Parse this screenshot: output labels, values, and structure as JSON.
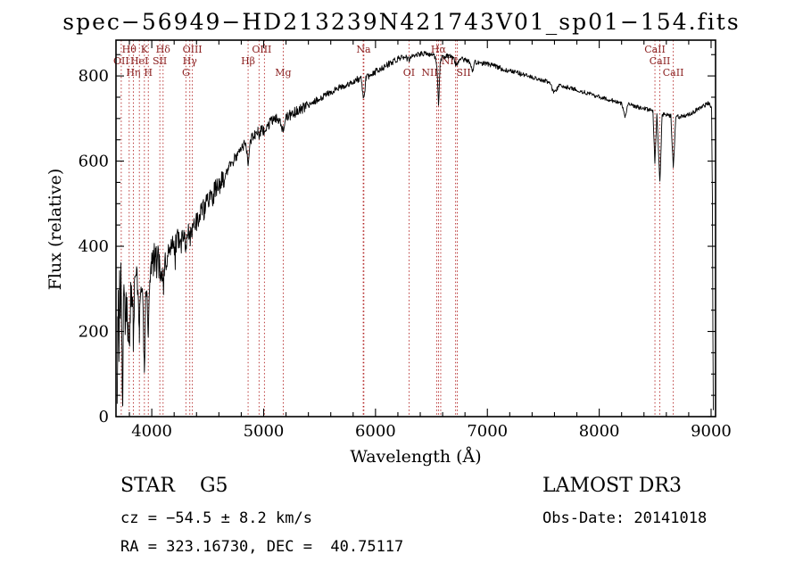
{
  "title": "spec−56949−HD213239N421743V01_sp01−154.fits",
  "chart_data": {
    "type": "line",
    "title": "spec−56949−HD213239N421743V01_sp01−154.fits",
    "xlabel": "Wavelength (Å)",
    "ylabel": "Flux (relative)",
    "xlim": [
      3680,
      9040
    ],
    "ylim": [
      0,
      884
    ],
    "x_ticks": [
      4000,
      5000,
      6000,
      7000,
      8000,
      9000
    ],
    "y_ticks": [
      0,
      200,
      400,
      600,
      800
    ],
    "x_minor_step": 200,
    "y_minor_step": 50,
    "grid": false,
    "legend": "none",
    "spectrum_color": "#000000",
    "marker_color": "#b22222",
    "label_color": "#8b2020",
    "marker_wavelengths": [
      3727,
      3798,
      3835,
      3889,
      3934,
      3969,
      4072,
      4101,
      4305,
      4340,
      4363,
      4861,
      4959,
      5007,
      5175,
      5890,
      5896,
      6300,
      6548,
      6563,
      6583,
      6716,
      6731,
      8498,
      8542,
      8662
    ],
    "spectral_lines": [
      {
        "label": "Hθ",
        "wavelength": 3798,
        "row": 1
      },
      {
        "label": "K",
        "wavelength": 3934,
        "row": 1
      },
      {
        "label": "Hδ",
        "wavelength": 4101,
        "row": 1
      },
      {
        "label": "OIII",
        "wavelength": 4363,
        "row": 1
      },
      {
        "label": "OIII",
        "wavelength": 4983,
        "row": 1
      },
      {
        "label": "Na",
        "wavelength": 5893,
        "row": 1
      },
      {
        "label": "Hα",
        "wavelength": 6563,
        "row": 1
      },
      {
        "label": "CaII",
        "wavelength": 8498,
        "row": 1
      },
      {
        "label": "OII",
        "wavelength": 3727,
        "row": 2
      },
      {
        "label": "HeI",
        "wavelength": 3889,
        "row": 2
      },
      {
        "label": "SII",
        "wavelength": 4072,
        "row": 2
      },
      {
        "label": "Hγ",
        "wavelength": 4340,
        "row": 2
      },
      {
        "label": "Hβ",
        "wavelength": 4861,
        "row": 2
      },
      {
        "label": "NII",
        "wavelength": 6583,
        "row": 2,
        "dx": 10
      },
      {
        "label": "CaII",
        "wavelength": 8542,
        "row": 2
      },
      {
        "label": "Hη",
        "wavelength": 3835,
        "row": 3
      },
      {
        "label": "H",
        "wavelength": 3969,
        "row": 3
      },
      {
        "label": "G",
        "wavelength": 4305,
        "row": 3
      },
      {
        "label": "Mg",
        "wavelength": 5175,
        "row": 3
      },
      {
        "label": "OI",
        "wavelength": 6300,
        "row": 3
      },
      {
        "label": "NII",
        "wavelength": 6548,
        "row": 3,
        "dx": -8
      },
      {
        "label": "SII",
        "wavelength": 6724,
        "row": 3,
        "dx": 8
      },
      {
        "label": "CaII",
        "wavelength": 8662,
        "row": 3
      }
    ],
    "series": [
      {
        "name": "spectrum",
        "points": [
          [
            3690,
            10
          ],
          [
            3695,
            200
          ],
          [
            3700,
            280
          ],
          [
            3706,
            150
          ],
          [
            3712,
            310
          ],
          [
            3718,
            230
          ],
          [
            3724,
            330
          ],
          [
            3730,
            180
          ],
          [
            3736,
            90
          ],
          [
            3741,
            40
          ],
          [
            3747,
            250
          ],
          [
            3754,
            320
          ],
          [
            3762,
            200
          ],
          [
            3770,
            300
          ],
          [
            3778,
            260
          ],
          [
            3786,
            210
          ],
          [
            3798,
            150
          ],
          [
            3808,
            260
          ],
          [
            3818,
            310
          ],
          [
            3828,
            270
          ],
          [
            3835,
            190
          ],
          [
            3844,
            280
          ],
          [
            3854,
            330
          ],
          [
            3864,
            350
          ],
          [
            3876,
            300
          ],
          [
            3889,
            210
          ],
          [
            3900,
            290
          ],
          [
            3912,
            330
          ],
          [
            3924,
            280
          ],
          [
            3934,
            70
          ],
          [
            3946,
            260
          ],
          [
            3958,
            310
          ],
          [
            3969,
            160
          ],
          [
            3982,
            290
          ],
          [
            3996,
            340
          ],
          [
            4010,
            360
          ],
          [
            4025,
            375
          ],
          [
            4040,
            360
          ],
          [
            4056,
            380
          ],
          [
            4072,
            330
          ],
          [
            4086,
            370
          ],
          [
            4101,
            310
          ],
          [
            4116,
            370
          ],
          [
            4132,
            385
          ],
          [
            4150,
            395
          ],
          [
            4170,
            390
          ],
          [
            4190,
            400
          ],
          [
            4210,
            405
          ],
          [
            4230,
            415
          ],
          [
            4252,
            420
          ],
          [
            4275,
            430
          ],
          [
            4295,
            420
          ],
          [
            4305,
            405
          ],
          [
            4320,
            435
          ],
          [
            4332,
            440
          ],
          [
            4340,
            415
          ],
          [
            4352,
            445
          ],
          [
            4363,
            430
          ],
          [
            4378,
            455
          ],
          [
            4400,
            460
          ],
          [
            4425,
            470
          ],
          [
            4450,
            480
          ],
          [
            4475,
            490
          ],
          [
            4500,
            500
          ],
          [
            4525,
            512
          ],
          [
            4550,
            522
          ],
          [
            4575,
            532
          ],
          [
            4600,
            540
          ],
          [
            4630,
            555
          ],
          [
            4660,
            570
          ],
          [
            4690,
            585
          ],
          [
            4720,
            598
          ],
          [
            4750,
            610
          ],
          [
            4780,
            622
          ],
          [
            4810,
            632
          ],
          [
            4840,
            640
          ],
          [
            4861,
            600
          ],
          [
            4880,
            648
          ],
          [
            4900,
            655
          ],
          [
            4925,
            662
          ],
          [
            4950,
            668
          ],
          [
            4959,
            660
          ],
          [
            4980,
            675
          ],
          [
            5007,
            668
          ],
          [
            5030,
            683
          ],
          [
            5060,
            690
          ],
          [
            5090,
            696
          ],
          [
            5120,
            700
          ],
          [
            5148,
            695
          ],
          [
            5175,
            672
          ],
          [
            5200,
            700
          ],
          [
            5230,
            707
          ],
          [
            5262,
            712
          ],
          [
            5295,
            717
          ],
          [
            5330,
            722
          ],
          [
            5365,
            727
          ],
          [
            5400,
            732
          ],
          [
            5440,
            738
          ],
          [
            5480,
            744
          ],
          [
            5520,
            750
          ],
          [
            5560,
            756
          ],
          [
            5600,
            762
          ],
          [
            5640,
            768
          ],
          [
            5680,
            773
          ],
          [
            5720,
            778
          ],
          [
            5760,
            783
          ],
          [
            5800,
            788
          ],
          [
            5840,
            792
          ],
          [
            5870,
            794
          ],
          [
            5890,
            755
          ],
          [
            5902,
            760
          ],
          [
            5915,
            796
          ],
          [
            5950,
            802
          ],
          [
            5990,
            808
          ],
          [
            6030,
            814
          ],
          [
            6070,
            820
          ],
          [
            6110,
            826
          ],
          [
            6150,
            832
          ],
          [
            6190,
            838
          ],
          [
            6230,
            843
          ],
          [
            6270,
            846
          ],
          [
            6300,
            836
          ],
          [
            6330,
            848
          ],
          [
            6365,
            850
          ],
          [
            6400,
            852
          ],
          [
            6435,
            852
          ],
          [
            6470,
            851
          ],
          [
            6505,
            850
          ],
          [
            6535,
            845
          ],
          [
            6548,
            825
          ],
          [
            6563,
            730
          ],
          [
            6578,
            825
          ],
          [
            6595,
            845
          ],
          [
            6630,
            846
          ],
          [
            6665,
            845
          ],
          [
            6700,
            842
          ],
          [
            6716,
            828
          ],
          [
            6731,
            830
          ],
          [
            6750,
            840
          ],
          [
            6790,
            838
          ],
          [
            6830,
            836
          ],
          [
            6868,
            810
          ],
          [
            6890,
            833
          ],
          [
            6930,
            831
          ],
          [
            6970,
            829
          ],
          [
            7000,
            828
          ],
          [
            7040,
            825
          ],
          [
            7080,
            822
          ],
          [
            7120,
            818
          ],
          [
            7160,
            815
          ],
          [
            7200,
            812
          ],
          [
            7240,
            809
          ],
          [
            7280,
            806
          ],
          [
            7320,
            803
          ],
          [
            7360,
            800
          ],
          [
            7400,
            797
          ],
          [
            7440,
            794
          ],
          [
            7480,
            791
          ],
          [
            7520,
            788
          ],
          [
            7560,
            784
          ],
          [
            7594,
            760
          ],
          [
            7615,
            765
          ],
          [
            7640,
            778
          ],
          [
            7680,
            776
          ],
          [
            7720,
            773
          ],
          [
            7760,
            770
          ],
          [
            7800,
            767
          ],
          [
            7840,
            764
          ],
          [
            7880,
            761
          ],
          [
            7920,
            758
          ],
          [
            7960,
            754
          ],
          [
            8000,
            751
          ],
          [
            8040,
            748
          ],
          [
            8080,
            745
          ],
          [
            8120,
            742
          ],
          [
            8160,
            739
          ],
          [
            8200,
            736
          ],
          [
            8230,
            705
          ],
          [
            8260,
            733
          ],
          [
            8300,
            730
          ],
          [
            8340,
            727
          ],
          [
            8380,
            724
          ],
          [
            8420,
            722
          ],
          [
            8460,
            719
          ],
          [
            8480,
            717
          ],
          [
            8498,
            590
          ],
          [
            8515,
            713
          ],
          [
            8542,
            548
          ],
          [
            8562,
            710
          ],
          [
            8600,
            708
          ],
          [
            8640,
            706
          ],
          [
            8662,
            580
          ],
          [
            8684,
            705
          ],
          [
            8720,
            704
          ],
          [
            8760,
            706
          ],
          [
            8800,
            710
          ],
          [
            8840,
            715
          ],
          [
            8880,
            722
          ],
          [
            8920,
            728
          ],
          [
            8950,
            732
          ],
          [
            8975,
            735
          ],
          [
            8995,
            730
          ],
          [
            9005,
            720
          ],
          [
            9012,
            500
          ],
          [
            9016,
            200
          ],
          [
            9020,
            15
          ]
        ]
      }
    ]
  },
  "footer": {
    "classification": "STAR    G5",
    "survey": "LAMOST DR3",
    "cz": "cz = −54.5 ± 8.2 km/s",
    "obs_date": "Obs-Date: 20141018",
    "coordinates": "RA = 323.16730, DEC =  40.75117"
  }
}
